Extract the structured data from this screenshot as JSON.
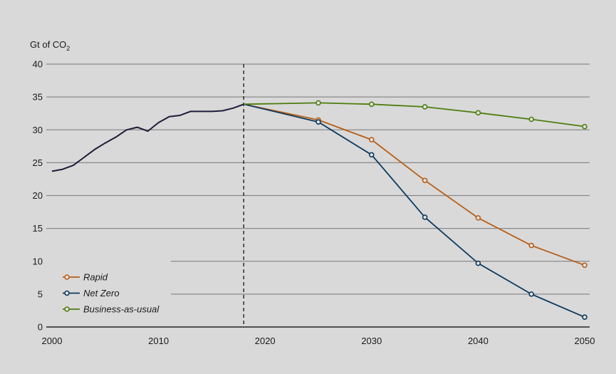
{
  "chart_data": {
    "type": "line",
    "ylabel": "Gt of CO2",
    "ylabel_main": "Gt of CO",
    "ylabel_sub": "2",
    "ylim": [
      0,
      40
    ],
    "yticks": [
      0,
      5,
      10,
      15,
      20,
      25,
      30,
      35,
      40
    ],
    "xlim": [
      2000,
      2050
    ],
    "xticks": [
      2000,
      2010,
      2020,
      2030,
      2040,
      2050
    ],
    "grid": true,
    "legend_position": "bottom-left",
    "projection_start": 2018,
    "historical": {
      "color": "#1c1c3a",
      "x": [
        2000,
        2001,
        2002,
        2003,
        2004,
        2005,
        2006,
        2007,
        2008,
        2009,
        2010,
        2011,
        2012,
        2013,
        2014,
        2015,
        2016,
        2017,
        2018
      ],
      "y": [
        23.7,
        24.0,
        24.6,
        25.8,
        27.0,
        28.0,
        28.9,
        30.0,
        30.4,
        29.8,
        31.1,
        32.0,
        32.2,
        32.8,
        32.8,
        32.8,
        32.9,
        33.3,
        33.9
      ]
    },
    "series": [
      {
        "name": "Rapid",
        "color": "#b85f17",
        "x": [
          2018,
          2025,
          2030,
          2035,
          2040,
          2045,
          2050
        ],
        "y": [
          33.9,
          31.5,
          28.5,
          22.3,
          16.6,
          12.4,
          9.4
        ]
      },
      {
        "name": "Net Zero",
        "color": "#0d3a5e",
        "x": [
          2018,
          2025,
          2030,
          2035,
          2040,
          2045,
          2050
        ],
        "y": [
          33.9,
          31.2,
          26.2,
          16.7,
          9.7,
          5.0,
          1.5
        ]
      },
      {
        "name": "Business-as-usual",
        "color": "#4f7d0e",
        "x": [
          2018,
          2025,
          2030,
          2035,
          2040,
          2045,
          2050
        ],
        "y": [
          33.9,
          34.1,
          33.9,
          33.5,
          32.6,
          31.6,
          30.5
        ]
      }
    ]
  }
}
